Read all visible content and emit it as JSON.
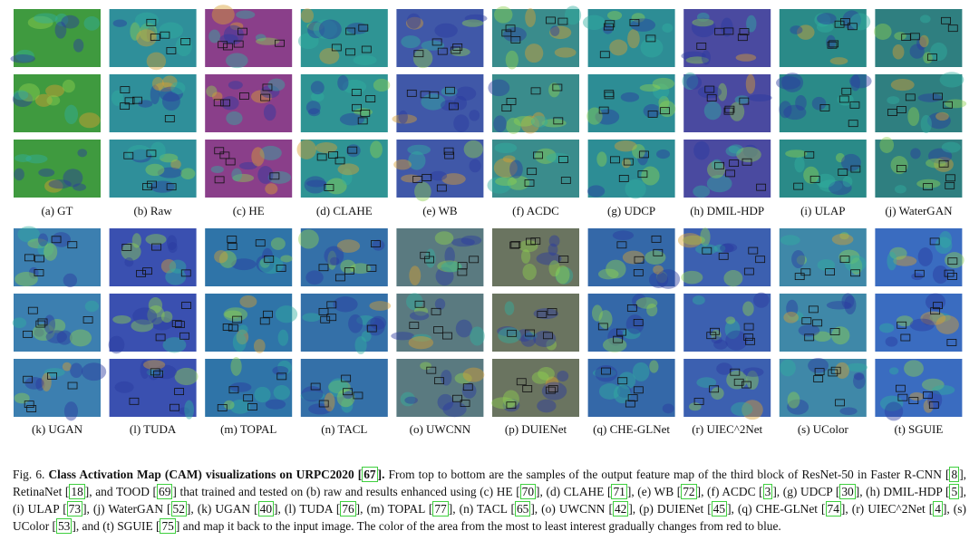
{
  "figure": {
    "panel_labels": [
      "(a) GT",
      "(b) Raw",
      "(c) HE",
      "(d) CLAHE",
      "(e) WB",
      "(f) ACDC",
      "(g) UDCP",
      "(h) DMIL-HDP",
      "(i) ULAP",
      "(j) WaterGAN",
      "(k) UGAN",
      "(l) TUDA",
      "(m) TOPAL",
      "(n) TACL",
      "(o) UWCNN",
      "(p) DUIENet",
      "(q) CHE-GLNet",
      "(r) UIEC^2Net",
      "(s) UColor",
      "(t) SGUIE"
    ],
    "caption": {
      "label": "Fig. 6.",
      "title": [
        "Class Activation Map (CAM) visualizations on URPC2020 [",
        "67",
        "]."
      ],
      "body": [
        " From top to bottom are the samples of the output feature map of the third block of ResNet-50 in Faster R-CNN [",
        "8",
        "], RetinaNet [",
        "18",
        "], and TOOD [",
        "69",
        "] that trained and tested on (b) raw and results enhanced using (c) HE [",
        "70",
        "], (d) CLAHE [",
        "71",
        "], (e) WB [",
        "72",
        "], (f) ACDC [",
        "3",
        "], (g) UDCP [",
        "30",
        "], (h) DMIL-HDP [",
        "5",
        "], (i) ULAP [",
        "73",
        "], (j) WaterGAN [",
        "52",
        "], (k) UGAN [",
        "40",
        "], (l) TUDA [",
        "76",
        "], (m) TOPAL [",
        "77",
        "], (n) TACL [",
        "65",
        "], (o) UWCNN [",
        "42",
        "], (p) DUIENet [",
        "45",
        "], (q) CHE-GLNet [",
        "74",
        "], (r) UIEC^2Net [",
        "4",
        "], (s) UColor [",
        "53",
        "], and (t) SGUIE [",
        "75",
        "] and map it back to the input image. The color of the area from the most to least interest gradually changes from red to blue."
      ]
    }
  }
}
